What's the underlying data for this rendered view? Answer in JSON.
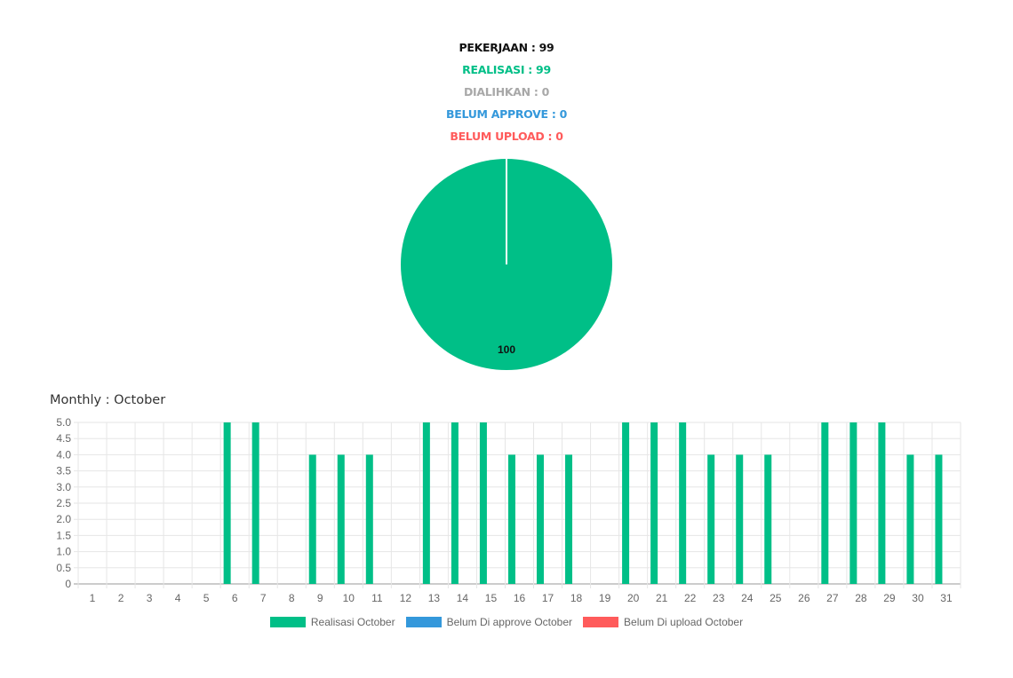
{
  "summary": {
    "pekerjaan": "PEKERJAAN : 99",
    "realisasi": "REALISASI : 99",
    "dialihkan": "DIALIHKAN : 0",
    "belum_approve": "BELUM APPROVE : 0",
    "belum_upload": "BELUM UPLOAD : 0"
  },
  "colors": {
    "pekerjaan": "#111111",
    "realisasi": "#00bf87",
    "dialihkan": "#a8a8a8",
    "belum_approve": "#3498db",
    "belum_upload": "#ff5b5b"
  },
  "monthly_title": "Monthly : October",
  "chart_data": [
    {
      "type": "pie",
      "slices": [
        {
          "label": "Realisasi",
          "value": 100,
          "color": "#00bf87"
        }
      ],
      "data_labels": [
        "100"
      ]
    },
    {
      "type": "bar",
      "categories": [
        "1",
        "2",
        "3",
        "4",
        "5",
        "6",
        "7",
        "8",
        "9",
        "10",
        "11",
        "12",
        "13",
        "14",
        "15",
        "16",
        "17",
        "18",
        "19",
        "20",
        "21",
        "22",
        "23",
        "24",
        "25",
        "26",
        "27",
        "28",
        "29",
        "30",
        "31"
      ],
      "series": [
        {
          "name": "Realisasi October",
          "color": "#00bf87",
          "values": [
            0,
            0,
            0,
            0,
            0,
            5,
            5,
            0,
            4,
            4,
            4,
            0,
            5,
            5,
            5,
            4,
            4,
            4,
            0,
            5,
            5,
            5,
            4,
            4,
            4,
            0,
            5,
            5,
            5,
            4,
            4
          ]
        },
        {
          "name": "Belum Di approve October",
          "color": "#3498db",
          "values": [
            0,
            0,
            0,
            0,
            0,
            0,
            0,
            0,
            0,
            0,
            0,
            0,
            0,
            0,
            0,
            0,
            0,
            0,
            0,
            0,
            0,
            0,
            0,
            0,
            0,
            0,
            0,
            0,
            0,
            0,
            0
          ]
        },
        {
          "name": "Belum Di upload October",
          "color": "#ff5b5b",
          "values": [
            0,
            0,
            0,
            0,
            0,
            0,
            0,
            0,
            0,
            0,
            0,
            0,
            0,
            0,
            0,
            0,
            0,
            0,
            0,
            0,
            0,
            0,
            0,
            0,
            0,
            0,
            0,
            0,
            0,
            0,
            0
          ]
        }
      ],
      "ylim": [
        0,
        5
      ],
      "yticks": [
        "0",
        "0.5",
        "1.0",
        "1.5",
        "2.0",
        "2.5",
        "3.0",
        "3.5",
        "4.0",
        "4.5",
        "5.0"
      ],
      "grid": true,
      "legend_position": "bottom"
    }
  ]
}
